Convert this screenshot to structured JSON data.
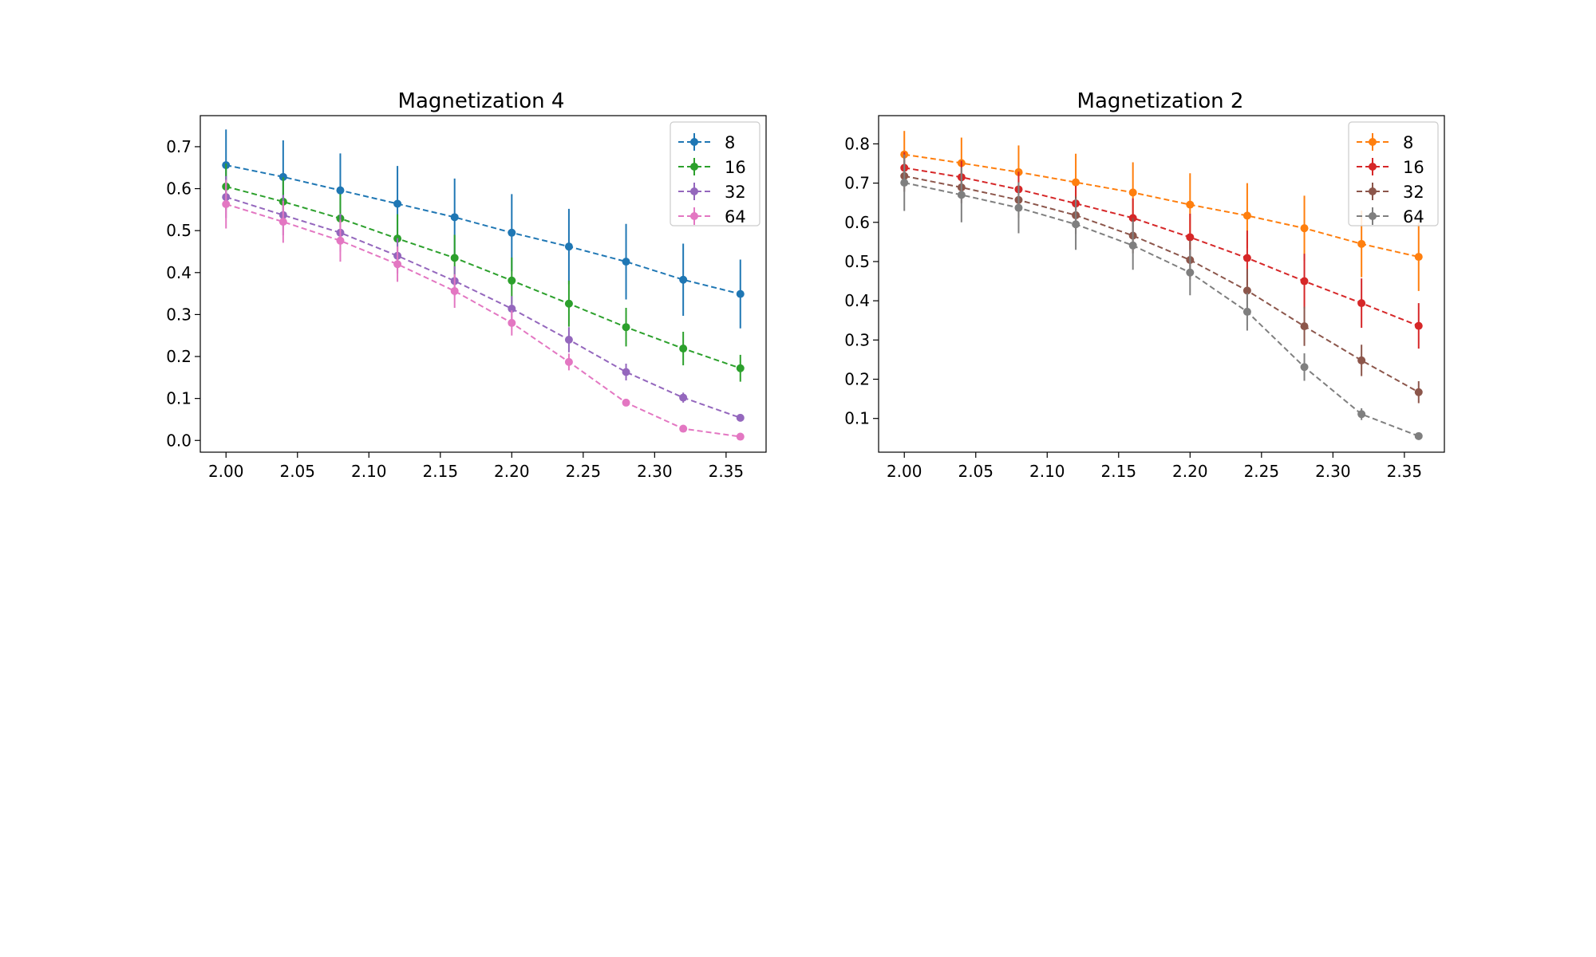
{
  "chart_data": [
    {
      "type": "line",
      "title": "Magnetization 4",
      "xlabel": "",
      "ylabel": "",
      "xlim": [
        1.982,
        2.378
      ],
      "ylim": [
        -0.028,
        0.774
      ],
      "xticks": [
        2.0,
        2.05,
        2.1,
        2.15,
        2.2,
        2.25,
        2.3,
        2.35
      ],
      "xtick_labels": [
        "2.00",
        "2.05",
        "2.10",
        "2.15",
        "2.20",
        "2.25",
        "2.30",
        "2.35"
      ],
      "yticks": [
        0.0,
        0.1,
        0.2,
        0.3,
        0.4,
        0.5,
        0.6,
        0.7
      ],
      "ytick_labels": [
        "0.0",
        "0.1",
        "0.2",
        "0.3",
        "0.4",
        "0.5",
        "0.6",
        "0.7"
      ],
      "grid": false,
      "legend_position": "top-right",
      "x": [
        2.0,
        2.04,
        2.08,
        2.12,
        2.16,
        2.2,
        2.24,
        2.28,
        2.32,
        2.36
      ],
      "series": [
        {
          "name": "8",
          "color": "#1f77b4",
          "values": [
            0.656,
            0.628,
            0.596,
            0.564,
            0.532,
            0.495,
            0.462,
            0.426,
            0.383,
            0.349
          ],
          "errors": [
            0.085,
            0.087,
            0.088,
            0.09,
            0.092,
            0.092,
            0.09,
            0.09,
            0.086,
            0.082
          ]
        },
        {
          "name": "16",
          "color": "#2ca02c",
          "values": [
            0.605,
            0.569,
            0.529,
            0.481,
            0.435,
            0.381,
            0.326,
            0.27,
            0.219,
            0.172
          ],
          "errors": [
            0.055,
            0.058,
            0.058,
            0.058,
            0.055,
            0.055,
            0.055,
            0.046,
            0.04,
            0.032
          ]
        },
        {
          "name": "32",
          "color": "#9467bd",
          "values": [
            0.58,
            0.537,
            0.495,
            0.44,
            0.38,
            0.314,
            0.24,
            0.163,
            0.102,
            0.054
          ],
          "errors": [
            0.05,
            0.048,
            0.045,
            0.042,
            0.035,
            0.03,
            0.03,
            0.02,
            0.012,
            0.006
          ]
        },
        {
          "name": "64",
          "color": "#e377c2",
          "values": [
            0.563,
            0.521,
            0.476,
            0.42,
            0.356,
            0.28,
            0.187,
            0.09,
            0.028,
            0.009
          ],
          "errors": [
            0.058,
            0.05,
            0.05,
            0.042,
            0.04,
            0.03,
            0.02,
            0.008,
            0.004,
            0.002
          ]
        }
      ]
    },
    {
      "type": "line",
      "title": "Magnetization 2",
      "xlabel": "",
      "ylabel": "",
      "xlim": [
        1.982,
        2.378
      ],
      "ylim": [
        0.014,
        0.872
      ],
      "xticks": [
        2.0,
        2.05,
        2.1,
        2.15,
        2.2,
        2.25,
        2.3,
        2.35
      ],
      "xtick_labels": [
        "2.00",
        "2.05",
        "2.10",
        "2.15",
        "2.20",
        "2.25",
        "2.30",
        "2.35"
      ],
      "yticks": [
        0.1,
        0.2,
        0.3,
        0.4,
        0.5,
        0.6,
        0.7,
        0.8
      ],
      "ytick_labels": [
        "0.1",
        "0.2",
        "0.3",
        "0.4",
        "0.5",
        "0.6",
        "0.7",
        "0.8"
      ],
      "grid": false,
      "legend_position": "top-right",
      "x": [
        2.0,
        2.04,
        2.08,
        2.12,
        2.16,
        2.2,
        2.24,
        2.28,
        2.32,
        2.36
      ],
      "series": [
        {
          "name": "8",
          "color": "#ff7f0e",
          "values": [
            0.773,
            0.751,
            0.728,
            0.702,
            0.676,
            0.645,
            0.617,
            0.585,
            0.545,
            0.512
          ],
          "errors": [
            0.06,
            0.065,
            0.068,
            0.073,
            0.077,
            0.08,
            0.083,
            0.083,
            0.085,
            0.087
          ]
        },
        {
          "name": "16",
          "color": "#d62728",
          "values": [
            0.739,
            0.715,
            0.684,
            0.648,
            0.611,
            0.562,
            0.509,
            0.45,
            0.394,
            0.336
          ],
          "errors": [
            0.04,
            0.042,
            0.045,
            0.045,
            0.05,
            0.06,
            0.07,
            0.07,
            0.063,
            0.058
          ]
        },
        {
          "name": "32",
          "color": "#8c564b",
          "values": [
            0.718,
            0.689,
            0.657,
            0.618,
            0.566,
            0.504,
            0.426,
            0.335,
            0.248,
            0.167
          ],
          "errors": [
            0.04,
            0.04,
            0.045,
            0.048,
            0.045,
            0.05,
            0.055,
            0.05,
            0.04,
            0.028
          ]
        },
        {
          "name": "64",
          "color": "#7f7f7f",
          "values": [
            0.701,
            0.67,
            0.637,
            0.595,
            0.541,
            0.472,
            0.372,
            0.231,
            0.111,
            0.055
          ],
          "errors": [
            0.072,
            0.07,
            0.065,
            0.065,
            0.062,
            0.058,
            0.048,
            0.035,
            0.015,
            0.006
          ]
        }
      ]
    }
  ]
}
